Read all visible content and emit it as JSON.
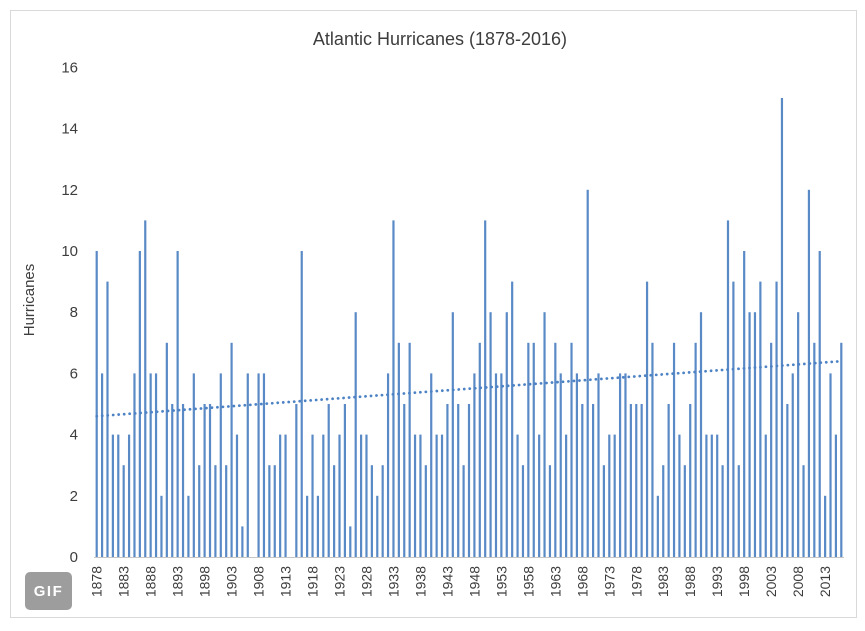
{
  "chart": {
    "title": "Atlantic Hurricanes (1878-2016)",
    "y_axis_title": "Hurricanes"
  },
  "badge": {
    "label": "GIF"
  },
  "chart_data": {
    "type": "bar",
    "title": "Atlantic Hurricanes (1878-2016)",
    "xlabel": "",
    "ylabel": "Hurricanes",
    "ylim": [
      0,
      16
    ],
    "y_ticks": [
      0,
      2,
      4,
      6,
      8,
      10,
      12,
      14,
      16
    ],
    "grid": "off",
    "legend": "none",
    "year_start": 1878,
    "year_end": 2016,
    "x_tick_labels": [
      "1878",
      "1883",
      "1888",
      "1893",
      "1898",
      "1903",
      "1908",
      "1913",
      "1918",
      "1923",
      "1928",
      "1933",
      "1938",
      "1943",
      "1948",
      "1953",
      "1958",
      "1963",
      "1968",
      "1973",
      "1978",
      "1983",
      "1988",
      "1993",
      "1998",
      "2003",
      "2008",
      "2013"
    ],
    "values": [
      10,
      6,
      9,
      4,
      4,
      3,
      4,
      6,
      10,
      11,
      6,
      6,
      2,
      7,
      5,
      10,
      5,
      2,
      6,
      3,
      5,
      5,
      3,
      6,
      3,
      7,
      4,
      1,
      6,
      0,
      6,
      6,
      3,
      3,
      4,
      4,
      0,
      5,
      10,
      2,
      4,
      2,
      4,
      5,
      3,
      4,
      5,
      1,
      8,
      4,
      4,
      3,
      2,
      3,
      6,
      11,
      7,
      5,
      7,
      4,
      4,
      3,
      6,
      4,
      4,
      5,
      8,
      5,
      3,
      5,
      6,
      7,
      11,
      8,
      6,
      6,
      8,
      9,
      4,
      3,
      7,
      7,
      4,
      8,
      3,
      7,
      6,
      4,
      7,
      6,
      5,
      12,
      5,
      6,
      3,
      4,
      4,
      6,
      6,
      5,
      5,
      5,
      9,
      7,
      2,
      3,
      5,
      7,
      4,
      3,
      5,
      7,
      8,
      4,
      4,
      4,
      3,
      11,
      9,
      3,
      10,
      8,
      8,
      9,
      4,
      7,
      9,
      15,
      5,
      6,
      8,
      3,
      12,
      7,
      10,
      2,
      6,
      4,
      7
    ],
    "trend_line": {
      "style": "dotted",
      "start_year": 1878,
      "start_value": 4.6,
      "end_year": 2016,
      "end_value": 6.4
    },
    "colors": {
      "bar": "#5a8ac6",
      "trend": "#4d82c4",
      "axis_line": "#c6c6c6",
      "frame": "#d9d9d9",
      "text": "#3d3d3d"
    }
  }
}
